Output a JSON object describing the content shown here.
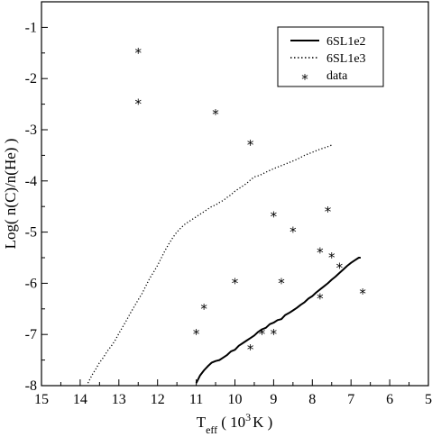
{
  "chart_data": {
    "type": "line",
    "title": "",
    "xlabel": {
      "main": "T",
      "sub": "eff",
      "open": "( 10",
      "sup": "3",
      "close": "K )"
    },
    "ylabel": "Log( n(C)/n(He) )",
    "xlim": [
      15,
      5
    ],
    "ylim": [
      -8,
      -0.5
    ],
    "x_reversed": true,
    "x_ticks": [
      15,
      14,
      13,
      12,
      11,
      10,
      9,
      8,
      7,
      6,
      5
    ],
    "y_ticks": [
      -8,
      -7,
      -6,
      -5,
      -4,
      -3,
      -2,
      -1
    ],
    "grid": false,
    "legend_position": "top-right",
    "legend": [
      "6SL1e2",
      "6SL1e3",
      "data"
    ],
    "marker_symbol": "*",
    "series": [
      {
        "name": "6SL1e2",
        "kind": "line",
        "style": "solid",
        "x": [
          11.0,
          10.9,
          10.8,
          10.7,
          10.6,
          10.5,
          10.4,
          10.3,
          10.2,
          10.1,
          10.0,
          9.9,
          9.8,
          9.7,
          9.6,
          9.5,
          9.4,
          9.3,
          9.2,
          9.1,
          9.0,
          8.9,
          8.8,
          8.7,
          8.6,
          8.5,
          8.4,
          8.3,
          8.2,
          8.1,
          8.0,
          7.9,
          7.8,
          7.7,
          7.6,
          7.5,
          7.4,
          7.3,
          7.2,
          7.1,
          7.0,
          6.9,
          6.8,
          6.75
        ],
        "y": [
          -7.95,
          -7.8,
          -7.7,
          -7.62,
          -7.55,
          -7.52,
          -7.5,
          -7.45,
          -7.4,
          -7.33,
          -7.3,
          -7.22,
          -7.17,
          -7.12,
          -7.07,
          -7.02,
          -6.95,
          -6.9,
          -6.87,
          -6.8,
          -6.77,
          -6.72,
          -6.7,
          -6.62,
          -6.58,
          -6.53,
          -6.48,
          -6.42,
          -6.37,
          -6.3,
          -6.25,
          -6.18,
          -6.12,
          -6.06,
          -6.0,
          -5.93,
          -5.87,
          -5.8,
          -5.73,
          -5.66,
          -5.6,
          -5.55,
          -5.5,
          -5.5
        ]
      },
      {
        "name": "6SL1e3",
        "kind": "line",
        "style": "dotted",
        "x": [
          13.8,
          13.7,
          13.6,
          13.5,
          13.4,
          13.3,
          13.2,
          13.1,
          13.0,
          12.9,
          12.8,
          12.7,
          12.6,
          12.5,
          12.4,
          12.3,
          12.2,
          12.1,
          12.0,
          11.9,
          11.8,
          11.7,
          11.6,
          11.5,
          11.4,
          11.3,
          11.2,
          11.1,
          11.0,
          10.9,
          10.8,
          10.7,
          10.6,
          10.5,
          10.4,
          10.3,
          10.2,
          10.1,
          10.0,
          9.9,
          9.8,
          9.7,
          9.6,
          9.5,
          9.4,
          9.3,
          9.2,
          9.0,
          8.8,
          8.6,
          8.4,
          8.2,
          8.0,
          7.8,
          7.6,
          7.5
        ],
        "y": [
          -7.95,
          -7.8,
          -7.68,
          -7.55,
          -7.45,
          -7.33,
          -7.23,
          -7.12,
          -6.98,
          -6.85,
          -6.72,
          -6.58,
          -6.45,
          -6.32,
          -6.2,
          -6.05,
          -5.9,
          -5.78,
          -5.65,
          -5.5,
          -5.35,
          -5.22,
          -5.1,
          -5.0,
          -4.92,
          -4.85,
          -4.8,
          -4.75,
          -4.7,
          -4.65,
          -4.6,
          -4.55,
          -4.5,
          -4.47,
          -4.42,
          -4.38,
          -4.32,
          -4.27,
          -4.2,
          -4.15,
          -4.1,
          -4.05,
          -3.98,
          -3.92,
          -3.9,
          -3.87,
          -3.83,
          -3.76,
          -3.7,
          -3.64,
          -3.58,
          -3.5,
          -3.44,
          -3.38,
          -3.33,
          -3.3
        ]
      },
      {
        "name": "data",
        "kind": "scatter",
        "x": [
          12.5,
          12.5,
          10.5,
          9.6,
          9.0,
          8.5,
          7.6,
          7.8,
          7.5,
          7.3,
          10.0,
          8.8,
          6.7,
          7.8,
          10.8,
          9.3,
          9.0,
          11.0,
          9.6
        ],
        "y": [
          -1.5,
          -2.5,
          -2.7,
          -3.3,
          -4.7,
          -5.0,
          -4.6,
          -5.4,
          -5.5,
          -5.7,
          -6.0,
          -6.0,
          -6.2,
          -6.3,
          -6.5,
          -7.0,
          -7.0,
          -7.0,
          -7.3
        ]
      }
    ]
  }
}
